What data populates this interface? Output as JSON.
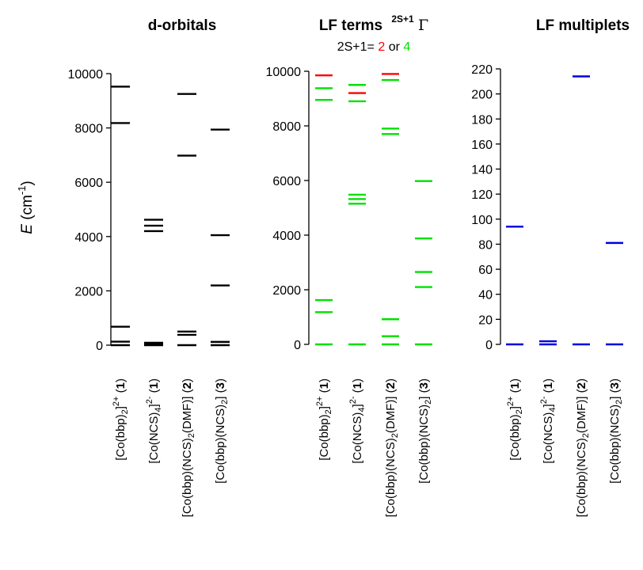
{
  "figure": {
    "ylabel": "E (cm⁻¹)",
    "subtitle": {
      "prefix": "2S+1= ",
      "doublet": "2",
      "or": " or ",
      "quartet": "4"
    }
  },
  "colors": {
    "axis": "#000000",
    "black": "#000000",
    "doublet": "#ff0000",
    "quartet": "#00e000",
    "multiplet": "#0000dd"
  },
  "chart_data": [
    {
      "type": "level-diagram",
      "title": "d-orbitals",
      "ylim": [
        0,
        10000
      ],
      "yticks": [
        0,
        2000,
        4000,
        6000,
        8000,
        10000
      ],
      "categories": [
        "[Co(bbp)2]2+ (1)",
        "[Co(NCS)4]2- (1)",
        "[Co(bbp)(NCS)2(DMF)] (2)",
        "[Co(bbp)(NCS)2] (3)"
      ],
      "series": [
        {
          "levels": [
            0,
            130,
            680,
            8180,
            9520
          ],
          "color": "black"
        },
        {
          "levels": [
            0,
            30,
            60,
            90,
            4200,
            4400,
            4620
          ],
          "color": "black"
        },
        {
          "levels": [
            0,
            380,
            500,
            6980,
            9250
          ],
          "color": "black"
        },
        {
          "levels": [
            0,
            120,
            2200,
            4050,
            7940
          ],
          "color": "black"
        }
      ]
    },
    {
      "type": "level-diagram",
      "title": "LF terms",
      "title_superscript": "2S+1",
      "title_symbol": "Γ",
      "ylim": [
        0,
        10000
      ],
      "yticks": [
        0,
        2000,
        4000,
        6000,
        8000,
        10000
      ],
      "categories": [
        "[Co(bbp)2]2+ (1)",
        "[Co(NCS)4]2- (1)",
        "[Co(bbp)(NCS)2(DMF)] (2)",
        "[Co(bbp)(NCS)2] (3)"
      ],
      "series": [
        {
          "levels": [
            {
              "y": 0,
              "spin": 4
            },
            {
              "y": 1180,
              "spin": 4
            },
            {
              "y": 1620,
              "spin": 4
            },
            {
              "y": 8950,
              "spin": 4
            },
            {
              "y": 9380,
              "spin": 4
            },
            {
              "y": 9850,
              "spin": 2
            }
          ]
        },
        {
          "levels": [
            {
              "y": 0,
              "spin": 4
            },
            {
              "y": 5150,
              "spin": 4
            },
            {
              "y": 5320,
              "spin": 4
            },
            {
              "y": 5480,
              "spin": 4
            },
            {
              "y": 8900,
              "spin": 4
            },
            {
              "y": 9200,
              "spin": 2
            },
            {
              "y": 9500,
              "spin": 4
            }
          ]
        },
        {
          "levels": [
            {
              "y": 0,
              "spin": 4
            },
            {
              "y": 300,
              "spin": 4
            },
            {
              "y": 920,
              "spin": 4
            },
            {
              "y": 7700,
              "spin": 4
            },
            {
              "y": 7900,
              "spin": 4
            },
            {
              "y": 9680,
              "spin": 4
            },
            {
              "y": 9900,
              "spin": 2
            }
          ]
        },
        {
          "levels": [
            {
              "y": 0,
              "spin": 4
            },
            {
              "y": 2100,
              "spin": 4
            },
            {
              "y": 2650,
              "spin": 4
            },
            {
              "y": 3880,
              "spin": 4
            },
            {
              "y": 5980,
              "spin": 4
            }
          ]
        }
      ]
    },
    {
      "type": "level-diagram",
      "title": "LF multiplets",
      "ylim": [
        0,
        220
      ],
      "yticks": [
        0,
        20,
        40,
        60,
        80,
        100,
        120,
        140,
        160,
        180,
        200,
        220
      ],
      "categories": [
        "[Co(bbp)2]2+ (1)",
        "[Co(NCS)4]2- (1)",
        "[Co(bbp)(NCS)2(DMF)] (2)",
        "[Co(bbp)(NCS)2] (3)"
      ],
      "series": [
        {
          "levels": [
            0,
            94
          ],
          "color": "multiplet"
        },
        {
          "levels": [
            0,
            2.5
          ],
          "color": "multiplet"
        },
        {
          "levels": [
            0,
            214
          ],
          "color": "multiplet"
        },
        {
          "levels": [
            0,
            81
          ],
          "color": "multiplet"
        }
      ]
    }
  ]
}
